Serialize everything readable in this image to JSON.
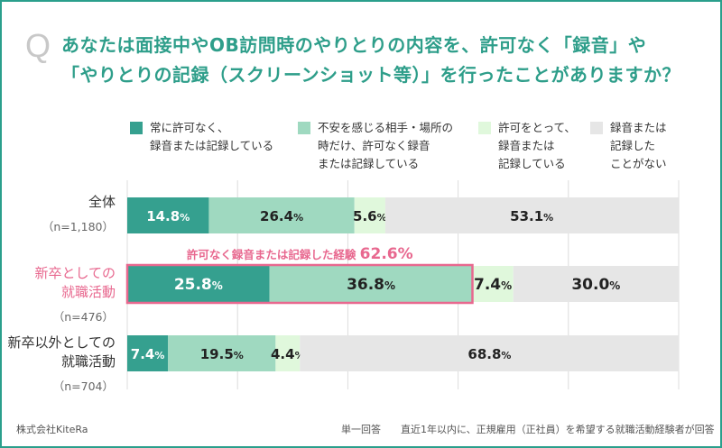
{
  "question_mark": "Q",
  "title_lines": [
    "あなたは面接中やOB訪問時のやりとりの内容を、許可なく「録音」や",
    "「やりとりの記録（スクリーンショット等）」を行ったことがありますか？"
  ],
  "chart_data": {
    "type": "bar",
    "orientation": "horizontal",
    "stacked": true,
    "xlim": [
      0,
      100
    ],
    "grid": true,
    "legend_position": "top",
    "categories": [
      {
        "label": "全体",
        "n": "（n=1,180）",
        "highlight": false
      },
      {
        "label": "新卒としての\n就職活動",
        "n": "（n=476）",
        "highlight": true
      },
      {
        "label": "新卒以外としての\n就職活動",
        "n": "（n=704）",
        "highlight": false
      }
    ],
    "series": [
      {
        "name": "常に許可なく、\n録音または記録している",
        "color": "#35a08f",
        "text_color": "#ffffff",
        "values": [
          14.8,
          25.8,
          7.4
        ]
      },
      {
        "name": "不安を感じる相手・場所の\n時だけ、許可なく録音\nまたは記録している",
        "color": "#9fd9c0",
        "text_color": "#222222",
        "values": [
          26.4,
          36.8,
          19.5
        ]
      },
      {
        "name": "許可をとって、\n録音または\n記録している",
        "color": "#e0f8dc",
        "text_color": "#222222",
        "values": [
          5.6,
          7.4,
          4.4
        ]
      },
      {
        "name": "録音または\n記録した\nことがない",
        "color": "#e6e6e6",
        "text_color": "#222222",
        "values": [
          53.1,
          30.0,
          68.8
        ]
      }
    ],
    "annotation": {
      "text": "許可なく録音または記録した経験",
      "value": "62.6%",
      "color": "#e8688f"
    }
  },
  "footer": {
    "company": "株式会社KiteRa",
    "note": "単一回答　　直近1年以内に、正規雇用（正社員）を希望する就職活動経験者が回答"
  }
}
